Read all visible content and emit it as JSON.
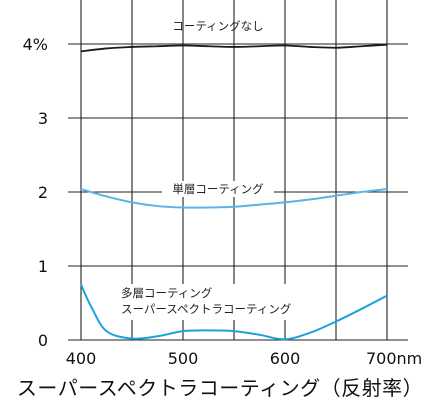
{
  "caption": "スーパースペクトラコーティング（反射率）",
  "chart_data": {
    "type": "line",
    "title": "スーパースペクトラコーティング（反射率）",
    "xlabel": "",
    "ylabel": "",
    "x_tick_labels": [
      "400",
      "500",
      "600",
      "700nm"
    ],
    "y_tick_labels": [
      "0",
      "1",
      "2",
      "3",
      "4%"
    ],
    "xlim": [
      400,
      700
    ],
    "ylim": [
      0,
      4.6
    ],
    "grid": true,
    "series": [
      {
        "name": "コーティングなし",
        "color": "#231815",
        "x": [
          400,
          425,
          450,
          475,
          500,
          525,
          550,
          575,
          600,
          625,
          650,
          675,
          700
        ],
        "y": [
          3.9,
          3.94,
          3.96,
          3.97,
          3.98,
          3.97,
          3.96,
          3.97,
          3.98,
          3.96,
          3.95,
          3.97,
          3.99
        ]
      },
      {
        "name": "単層コーティング",
        "color": "#5ab4e5",
        "x": [
          400,
          425,
          450,
          475,
          500,
          525,
          550,
          575,
          600,
          625,
          650,
          675,
          700
        ],
        "y": [
          2.04,
          1.94,
          1.86,
          1.81,
          1.79,
          1.79,
          1.8,
          1.83,
          1.86,
          1.9,
          1.95,
          2.0,
          2.04
        ]
      },
      {
        "name": "多層コーティング\nスーパースペクトラコーティング",
        "color": "#1aa3d9",
        "x": [
          400,
          410,
          425,
          450,
          475,
          500,
          525,
          550,
          575,
          600,
          625,
          650,
          675,
          700
        ],
        "y": [
          0.75,
          0.45,
          0.12,
          0.02,
          0.05,
          0.12,
          0.13,
          0.12,
          0.07,
          0.01,
          0.1,
          0.25,
          0.42,
          0.6
        ]
      }
    ]
  }
}
